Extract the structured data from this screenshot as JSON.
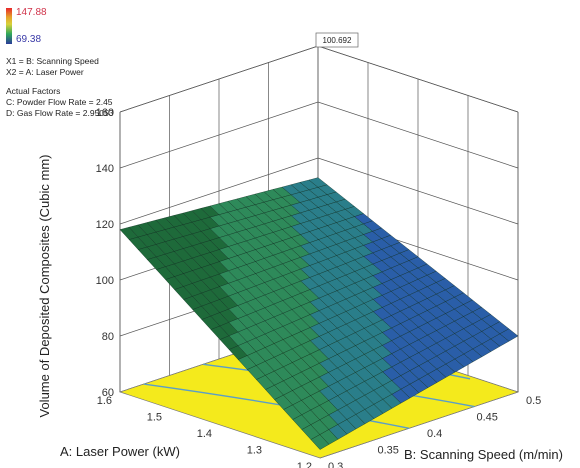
{
  "legend": {
    "max": "147.88",
    "min": "69.38",
    "colors": [
      "#e8262a",
      "#e6a12a",
      "#d8d23a",
      "#2fa85a",
      "#2b3a9a"
    ]
  },
  "info": {
    "x1": "X1 = B: Scanning Speed",
    "x2": "X2 = A: Laser Power",
    "actual_title": "Actual Factors",
    "factor_c": "C: Powder Flow Rate = 2.45",
    "factor_d": "D: Gas Flow Rate = 2.95053"
  },
  "chart_data": {
    "type": "surface",
    "zlabel": "Volume of Deposited Composites (Cubic mm)",
    "xlabel": "B: Scanning Speed (m/min)",
    "ylabel": "A:  Laser Power (kW)",
    "z_ticks": [
      "160",
      "140",
      "120",
      "100",
      "80",
      "60"
    ],
    "x_ticks": [
      "0.3",
      "0.35",
      "0.4",
      "0.45",
      "0.5"
    ],
    "y_ticks": [
      "1.2",
      "1.3",
      "1.4",
      "1.5",
      "1.6"
    ],
    "zlim": [
      60,
      160
    ],
    "annotation": "100.692",
    "corner_values": {
      "speed_0.3_power_1.2": 63,
      "speed_0.3_power_1.6": 118,
      "speed_0.5_power_1.2": 80,
      "speed_0.5_power_1.6": 113
    },
    "surface_colors": [
      "#1e6a3a",
      "#2e8a5a",
      "#2a7e8a",
      "#2a5ea8"
    ],
    "floor_color": "#f4ea1c",
    "contour_color": "#5a9ec8"
  }
}
